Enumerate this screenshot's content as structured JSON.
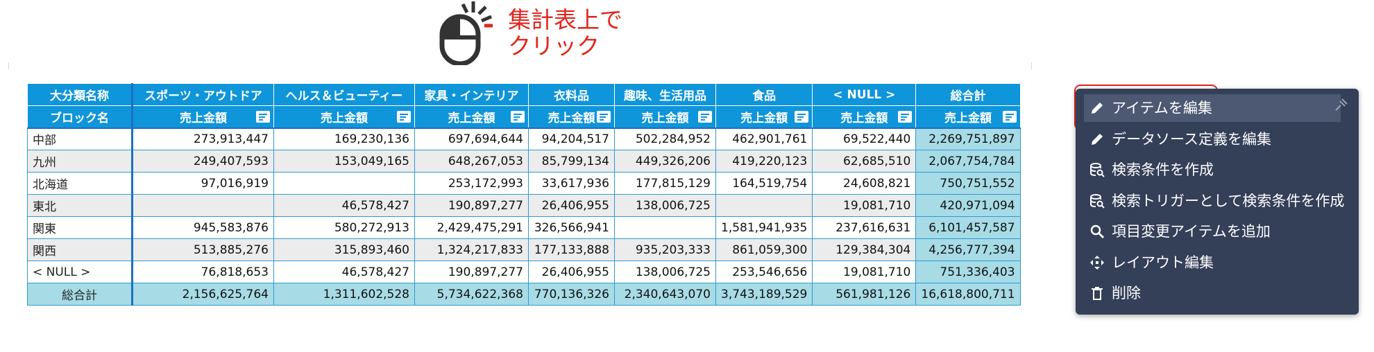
{
  "hint": {
    "line1": "集計表上で",
    "line2": "クリック"
  },
  "table": {
    "top_left_header": "大分類名称",
    "row_header": "ブロック名",
    "columns": [
      {
        "label": "スポーツ・アウトドア",
        "measure": "売上金額"
      },
      {
        "label": "ヘルス＆ビューティー",
        "measure": "売上金額"
      },
      {
        "label": "家具・インテリア",
        "measure": "売上金額"
      },
      {
        "label": "衣料品",
        "measure": "売上金額"
      },
      {
        "label": "趣味、生活用品",
        "measure": "売上金額"
      },
      {
        "label": "食品",
        "measure": "売上金額"
      },
      {
        "label": "< NULL >",
        "measure": "売上金額"
      },
      {
        "label": "総合計",
        "measure": "売上金額"
      }
    ],
    "rows": [
      {
        "label": "中部",
        "values": [
          "273,913,447",
          "169,230,136",
          "697,694,644",
          "94,204,517",
          "502,284,952",
          "462,901,761",
          "69,522,440",
          "2,269,751,897"
        ]
      },
      {
        "label": "九州",
        "values": [
          "249,407,593",
          "153,049,165",
          "648,267,053",
          "85,799,134",
          "449,326,206",
          "419,220,123",
          "62,685,510",
          "2,067,754,784"
        ]
      },
      {
        "label": "北海道",
        "values": [
          "97,016,919",
          "",
          "253,172,993",
          "33,617,936",
          "177,815,129",
          "164,519,754",
          "24,608,821",
          "750,751,552"
        ]
      },
      {
        "label": "東北",
        "values": [
          "",
          "46,578,427",
          "190,897,277",
          "26,406,955",
          "138,006,725",
          "",
          "19,081,710",
          "420,971,094"
        ]
      },
      {
        "label": "関東",
        "values": [
          "945,583,876",
          "580,272,913",
          "2,429,475,291",
          "326,566,941",
          "",
          "1,581,941,935",
          "237,616,631",
          "6,101,457,587"
        ]
      },
      {
        "label": "関西",
        "values": [
          "513,885,276",
          "315,893,460",
          "1,324,217,833",
          "177,133,888",
          "935,203,333",
          "861,059,300",
          "129,384,304",
          "4,256,777,394"
        ]
      },
      {
        "label": "< NULL >",
        "values": [
          "76,818,653",
          "46,578,427",
          "190,897,277",
          "26,406,955",
          "138,006,725",
          "253,546,656",
          "19,081,710",
          "751,336,403"
        ]
      }
    ],
    "grand_total": {
      "label": "総合計",
      "values": [
        "2,156,625,764",
        "1,311,602,528",
        "5,734,622,368",
        "770,136,326",
        "2,340,643,070",
        "3,743,189,529",
        "561,981,126",
        "16,618,800,711"
      ]
    }
  },
  "menu": {
    "items": [
      {
        "label": "アイテムを編集",
        "icon": "pencil-icon"
      },
      {
        "label": "データソース定義を編集",
        "icon": "pencil-icon"
      },
      {
        "label": "検索条件を作成",
        "icon": "database-search-icon"
      },
      {
        "label": "検索トリガーとして検索条件を作成",
        "icon": "database-search-icon"
      },
      {
        "label": "項目変更アイテムを追加",
        "icon": "magnifier-icon"
      },
      {
        "label": "レイアウト編集",
        "icon": "move-arrows-icon"
      },
      {
        "label": "削除",
        "icon": "trash-icon"
      }
    ],
    "pin_icon": "pin-icon"
  },
  "colors": {
    "header_bg": "#0f95d9",
    "total_bg": "#a7dbe6",
    "menu_bg": "#343f58",
    "highlight": "#e1251b"
  }
}
